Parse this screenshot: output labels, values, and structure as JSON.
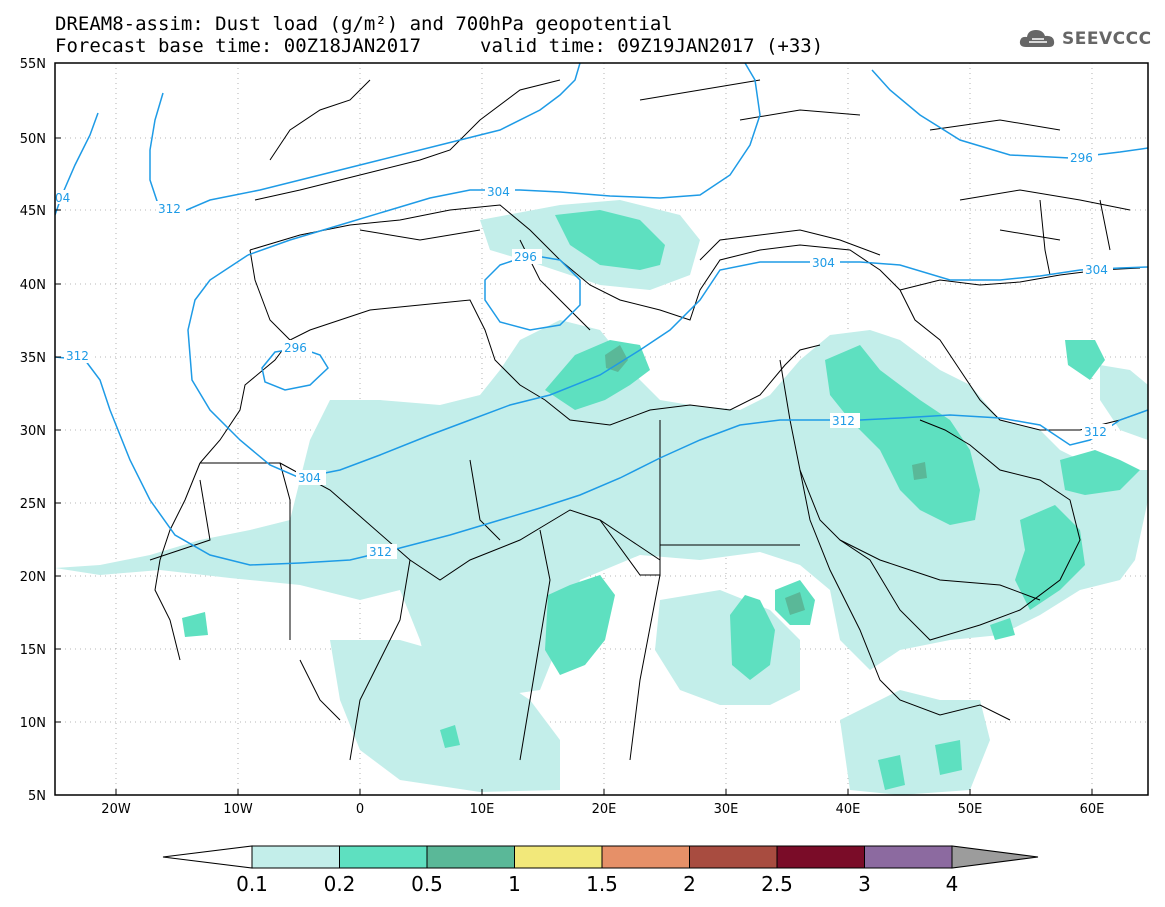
{
  "header": {
    "line1": "DREAM8-assim: Dust load (g/m²) and 700hPa geopotential",
    "line2": "Forecast base time: 00Z18JAN2017",
    "valid": "valid time: 09Z19JAN2017 (+33)",
    "logo_text": "SEEVCCC",
    "logo_icon": "cloud-icon"
  },
  "map": {
    "lat_labels": [
      "55N",
      "50N",
      "45N",
      "40N",
      "35N",
      "30N",
      "25N",
      "20N",
      "15N",
      "10N",
      "5N"
    ],
    "lon_labels": [
      "20W",
      "10W",
      "0",
      "10E",
      "20E",
      "30E",
      "40E",
      "50E",
      "60E"
    ],
    "contour_labels": [
      "04",
      "312",
      "304",
      "296",
      "304",
      "296",
      "312",
      "304",
      "312",
      "312",
      "304",
      "304",
      "296",
      "312"
    ]
  },
  "legend": {
    "levels": [
      "0.1",
      "0.2",
      "0.5",
      "1",
      "1.5",
      "2",
      "2.5",
      "3",
      "4"
    ],
    "colors": [
      "#ffffff",
      "#c3eeea",
      "#5ee0c0",
      "#5ab898",
      "#f2e87a",
      "#e69068",
      "#a84c40",
      "#7a0c28",
      "#8c6aa0",
      "#9c9c9c"
    ],
    "units": "g/m²"
  },
  "colors": {
    "dust_0_1": "#c3eeea",
    "dust_0_2": "#5ee0c0",
    "dust_0_5": "#5ab898",
    "geopotential": "#1e9be6"
  }
}
